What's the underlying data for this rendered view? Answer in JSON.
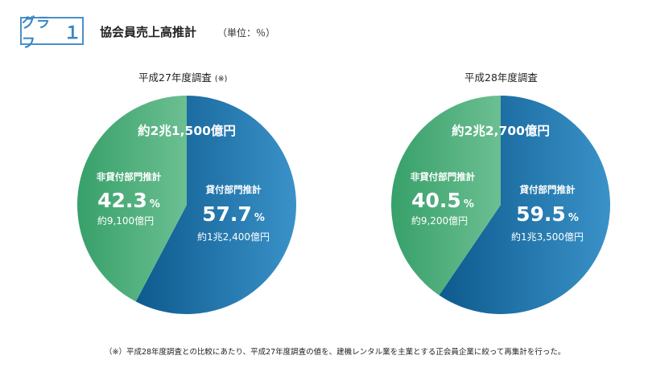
{
  "header": {
    "badge_label": "グラフ",
    "badge_number": "１",
    "title": "協会員売上高推計",
    "unit": "（単位：％）"
  },
  "colors": {
    "lending_dark": "#0d5a8e",
    "lending_light": "#3a92c8",
    "non_lending_dark": "#37a06a",
    "non_lending_light": "#6cbf92"
  },
  "chart_data": {
    "type": "pie",
    "charts": [
      {
        "subtitle": "平成27年度調査",
        "subtitle_note": "(※)",
        "total_label": "約2兆1,500億円",
        "slices": [
          {
            "name": "貸付部門推計",
            "percent": 57.7,
            "percent_text": "57.7",
            "amount_text": "約1兆2,400億円"
          },
          {
            "name": "非貸付部門推計",
            "percent": 42.3,
            "percent_text": "42.3",
            "amount_text": "約9,100億円"
          }
        ]
      },
      {
        "subtitle": "平成28年度調査",
        "subtitle_note": "",
        "total_label": "約2兆2,700億円",
        "slices": [
          {
            "name": "貸付部門推計",
            "percent": 59.5,
            "percent_text": "59.5",
            "amount_text": "約1兆3,500億円"
          },
          {
            "name": "非貸付部門推計",
            "percent": 40.5,
            "percent_text": "40.5",
            "amount_text": "約9,200億円"
          }
        ]
      }
    ],
    "percent_sign": "%"
  },
  "footnote": "（※）平成28年度調査との比較にあたり、平成27年度調査の値を、建機レンタル業を主業とする正会員企業に絞って再集計を行った。"
}
